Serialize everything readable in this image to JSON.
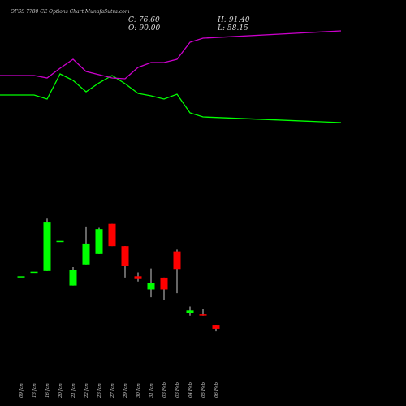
{
  "header": {
    "title": "OFSS 7780  CE Options  Chart MunafaSutra.com",
    "close_label": "C:",
    "close_value": "76.60",
    "high_label": "H:",
    "high_value": "91.40",
    "open_label": "O:",
    "open_value": "90.00",
    "low_label": "L:",
    "low_value": "58.15"
  },
  "colors": {
    "background": "#000000",
    "up": "#00ff00",
    "down": "#ff0000",
    "neutral": "#ffffff",
    "upper_line": "#00ff00",
    "lower_line": "#cc00cc"
  },
  "chart_data": {
    "type": "candlestick",
    "price_range": [
      0,
      130
    ],
    "dates": [
      "09 Jan",
      "13 Jan",
      "16 Jan",
      "20 Jan",
      "21 Jan",
      "22 Jan",
      "23 Jan",
      "27 Jan",
      "29 Jan",
      "30 Jan",
      "31 Jan",
      "03 Feb",
      "03 Feb",
      "04 Feb",
      "05 Feb",
      "06 Feb"
    ],
    "candles": [
      {
        "open": 71.0,
        "high": 71.0,
        "low": 71.0,
        "close": 71.0,
        "color": "up"
      },
      {
        "open": 74.5,
        "high": 74.5,
        "low": 74.5,
        "close": 74.5,
        "color": "up"
      },
      {
        "open": 75.0,
        "high": 115.0,
        "low": 75.0,
        "close": 112.0,
        "color": "up"
      },
      {
        "open": 98.0,
        "high": 98.0,
        "low": 98.0,
        "close": 98.0,
        "color": "up"
      },
      {
        "open": 64.0,
        "high": 78.0,
        "low": 64.0,
        "close": 76.0,
        "color": "up"
      },
      {
        "open": 80.0,
        "high": 109.0,
        "low": 80.0,
        "close": 96.0,
        "color": "up"
      },
      {
        "open": 88.0,
        "high": 108.0,
        "low": 88.0,
        "close": 107.0,
        "color": "up"
      },
      {
        "open": 111.0,
        "high": 111.0,
        "low": 94.0,
        "close": 94.0,
        "color": "down"
      },
      {
        "open": 94.0,
        "high": 94.0,
        "low": 70.0,
        "close": 79.0,
        "color": "down"
      },
      {
        "open": 71.0,
        "high": 74.0,
        "low": 67.0,
        "close": 69.5,
        "color": "down"
      },
      {
        "open": 61.0,
        "high": 77.0,
        "low": 55.0,
        "close": 66.0,
        "color": "up"
      },
      {
        "open": 70.0,
        "high": 70.0,
        "low": 53.0,
        "close": 61.0,
        "color": "down"
      },
      {
        "open": 90.0,
        "high": 91.4,
        "low": 58.15,
        "close": 76.6,
        "color": "down"
      },
      {
        "open": 43.0,
        "high": 48.0,
        "low": 41.0,
        "close": 45.0,
        "color": "up"
      },
      {
        "open": 42.0,
        "high": 46.0,
        "low": 41.0,
        "close": 41.5,
        "color": "down"
      },
      {
        "open": 34.0,
        "high": 34.0,
        "low": 29.0,
        "close": 31.0,
        "color": "down"
      }
    ],
    "lines": [
      {
        "color": "#00ff00",
        "values": [
          128,
          128,
          123,
          154,
          146,
          132,
          143,
          152,
          142,
          130,
          127,
          123,
          129,
          106,
          101,
          94
        ]
      },
      {
        "color": "#cc00cc",
        "values": [
          152,
          152,
          149,
          161,
          172,
          157,
          153,
          149,
          148,
          162,
          168,
          168,
          172,
          193,
          198,
          207
        ]
      }
    ],
    "grid": false
  }
}
